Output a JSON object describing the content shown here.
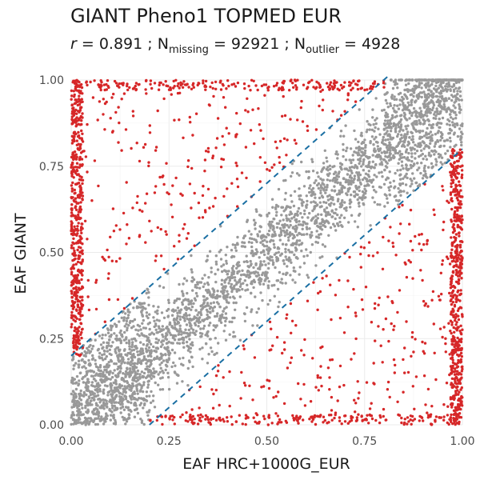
{
  "chart_data": {
    "type": "scatter",
    "title": "GIANT Pheno1 TOPMED EUR",
    "subtitle": {
      "r_label": "r",
      "r_value": "0.891",
      "missing_label": "N",
      "missing_sub": "missing",
      "missing_value": "92921",
      "outlier_label": "N",
      "outlier_sub": "outlier",
      "outlier_value": "4928"
    },
    "xlabel": "EAF HRC+1000G_EUR",
    "ylabel": "EAF GIANT",
    "xlim": [
      0,
      1
    ],
    "ylim": [
      0,
      1
    ],
    "x_ticks": [
      "0.00",
      "0.25",
      "0.50",
      "0.75",
      "1.00"
    ],
    "y_ticks": [
      "0.00",
      "0.25",
      "0.50",
      "0.75",
      "1.00"
    ],
    "grid": true,
    "threshold_lines": [
      {
        "intercept": 0.2,
        "slope": 1,
        "color": "#1a6fa3",
        "style": "dashed"
      },
      {
        "intercept": -0.2,
        "slope": 1,
        "color": "#1a6fa3",
        "style": "dashed"
      }
    ],
    "series_colors": {
      "inlier": "#999999",
      "outlier": "#d62728"
    }
  }
}
